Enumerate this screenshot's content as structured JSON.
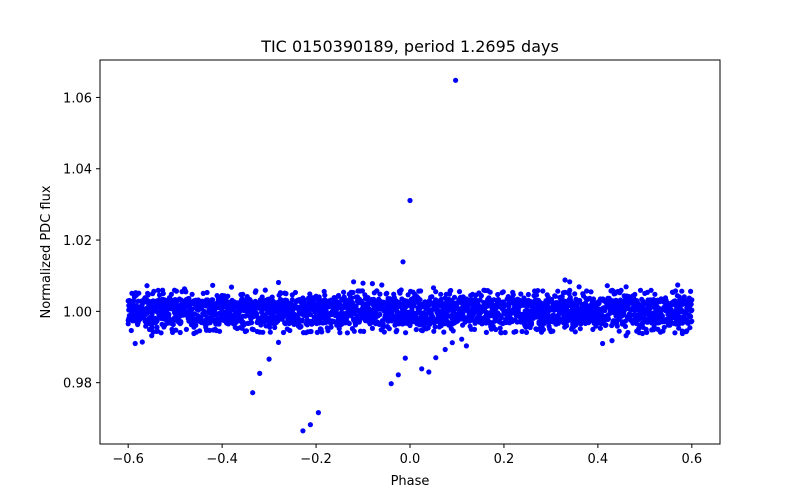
{
  "chart_data": {
    "type": "scatter",
    "title": "TIC 0150390189, period 1.2695 days",
    "xlabel": "Phase",
    "ylabel": "Normalized PDC flux",
    "xlim": [
      -0.66,
      0.66
    ],
    "ylim": [
      0.9628,
      1.0705
    ],
    "xticks": [
      -0.6,
      -0.4,
      -0.2,
      0.0,
      0.2,
      0.4,
      0.6
    ],
    "xtick_labels": [
      "−0.6",
      "−0.4",
      "−0.2",
      "0.0",
      "0.2",
      "0.4",
      "0.6"
    ],
    "yticks": [
      0.98,
      1.0,
      1.02,
      1.04,
      1.06
    ],
    "ytick_labels": [
      "0.98",
      "1.00",
      "1.02",
      "1.04",
      "1.06"
    ],
    "grid": false,
    "legend": "none",
    "marker_color": "#0000ff",
    "band": {
      "x_range": [
        -0.6,
        0.6
      ],
      "center": 1.0,
      "core_halfwidth": 0.0035,
      "noise_halfwidth": 0.006
    },
    "points": [
      {
        "x": 0.097,
        "y": 1.0648
      },
      {
        "x": 0.0,
        "y": 1.0311
      },
      {
        "x": -0.015,
        "y": 1.0139
      },
      {
        "x": -0.335,
        "y": 0.9772
      },
      {
        "x": -0.32,
        "y": 0.9826
      },
      {
        "x": -0.3,
        "y": 0.9866
      },
      {
        "x": -0.28,
        "y": 0.9913
      },
      {
        "x": -0.228,
        "y": 0.9665
      },
      {
        "x": -0.212,
        "y": 0.9682
      },
      {
        "x": -0.195,
        "y": 0.9716
      },
      {
        "x": -0.04,
        "y": 0.9797
      },
      {
        "x": -0.025,
        "y": 0.9822
      },
      {
        "x": -0.01,
        "y": 0.9869
      },
      {
        "x": 0.025,
        "y": 0.9839
      },
      {
        "x": 0.04,
        "y": 0.983
      },
      {
        "x": 0.055,
        "y": 0.987
      },
      {
        "x": 0.075,
        "y": 0.9893
      },
      {
        "x": 0.09,
        "y": 0.9912
      },
      {
        "x": 0.12,
        "y": 0.9903
      },
      {
        "x": 0.11,
        "y": 0.9922
      },
      {
        "x": -0.585,
        "y": 0.991
      },
      {
        "x": -0.57,
        "y": 0.9914
      },
      {
        "x": -0.55,
        "y": 0.9932
      },
      {
        "x": -0.53,
        "y": 0.994
      },
      {
        "x": -0.56,
        "y": 1.0072
      },
      {
        "x": -0.48,
        "y": 1.0063
      },
      {
        "x": -0.46,
        "y": 0.9938
      },
      {
        "x": -0.42,
        "y": 1.0073
      },
      {
        "x": -0.38,
        "y": 1.0068
      },
      {
        "x": -0.28,
        "y": 1.0081
      },
      {
        "x": -0.12,
        "y": 1.0083
      },
      {
        "x": -0.1,
        "y": 1.0079
      },
      {
        "x": -0.08,
        "y": 1.0078
      },
      {
        "x": -0.06,
        "y": 1.0074
      },
      {
        "x": 0.05,
        "y": 1.0066
      },
      {
        "x": 0.33,
        "y": 1.0088
      },
      {
        "x": 0.34,
        "y": 1.0083
      },
      {
        "x": 0.36,
        "y": 1.0069
      },
      {
        "x": 0.42,
        "y": 1.0072
      },
      {
        "x": 0.46,
        "y": 1.0069
      },
      {
        "x": 0.57,
        "y": 1.0074
      },
      {
        "x": 0.41,
        "y": 0.991
      },
      {
        "x": 0.43,
        "y": 0.9918
      },
      {
        "x": 0.46,
        "y": 0.9932
      },
      {
        "x": 0.495,
        "y": 0.9938
      },
      {
        "x": 0.58,
        "y": 0.9938
      }
    ]
  }
}
